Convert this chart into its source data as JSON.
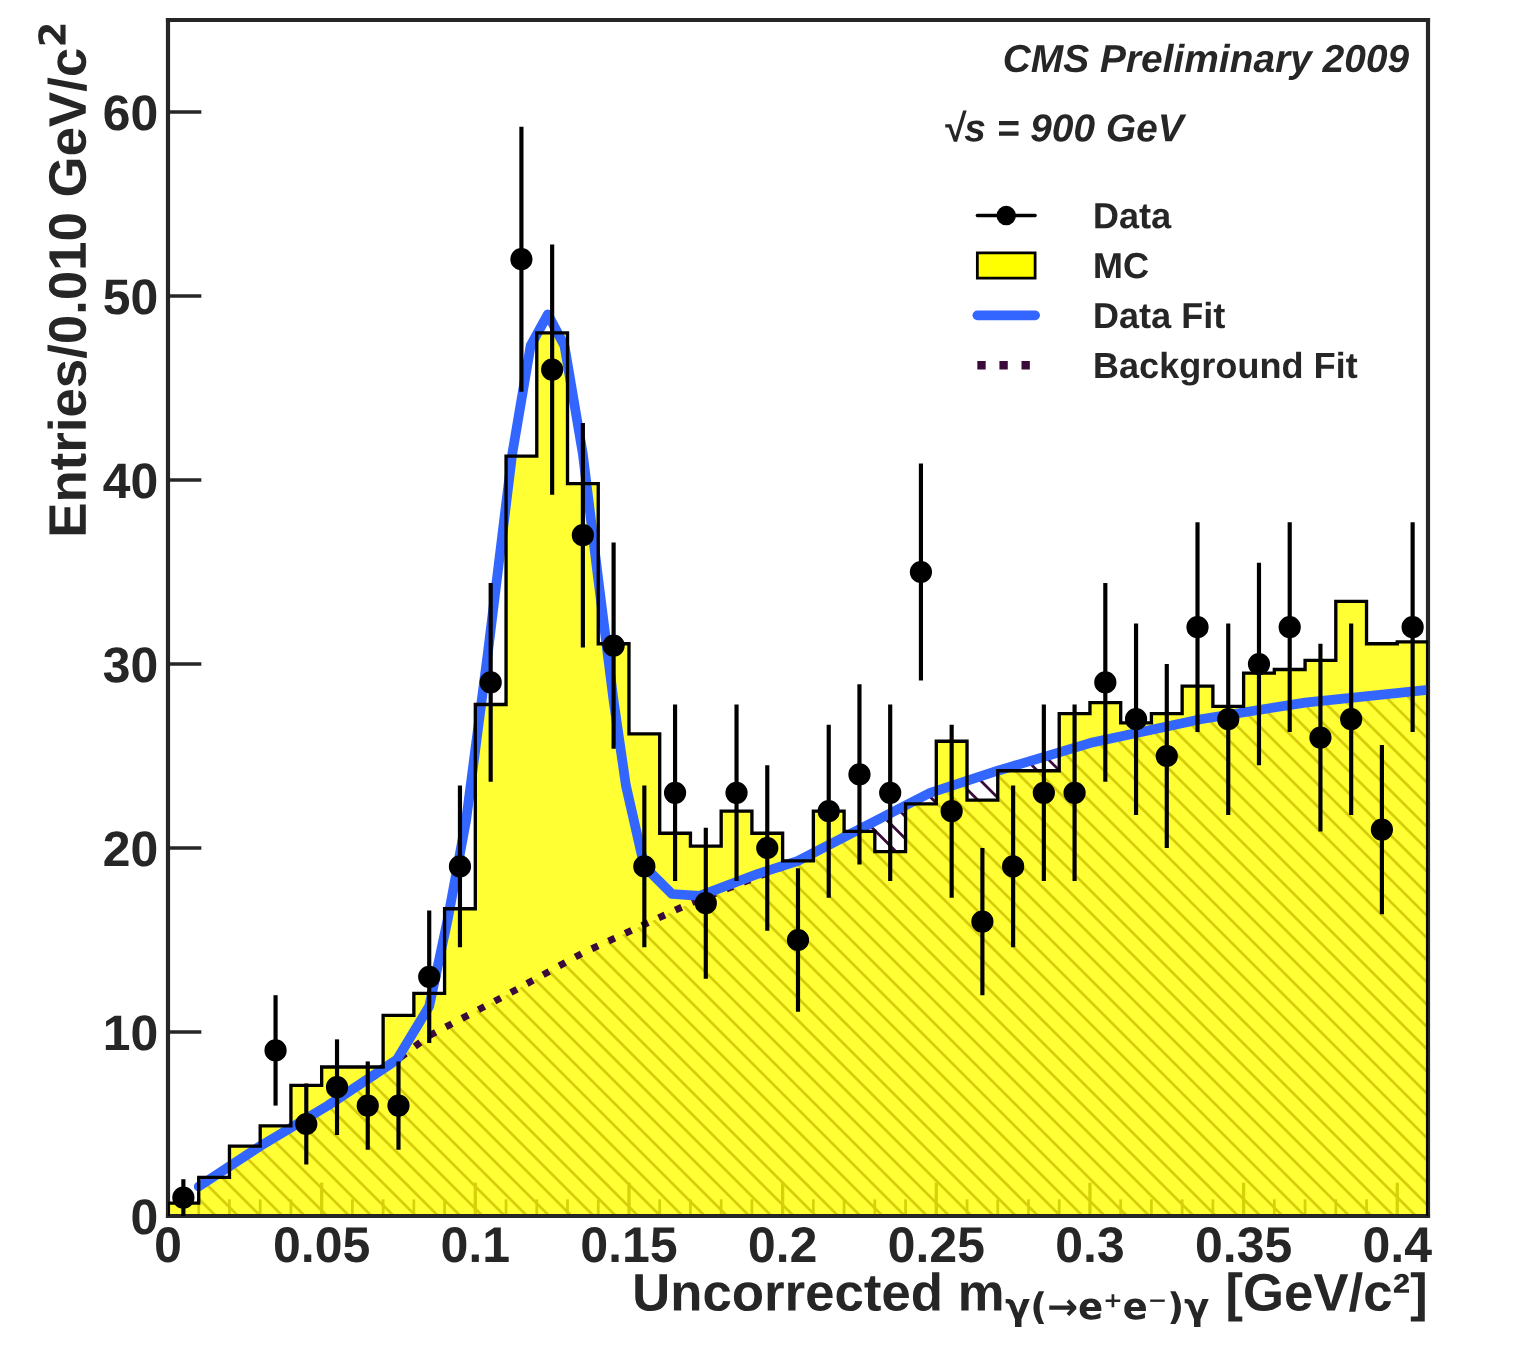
{
  "chart_data": {
    "type": "scatter",
    "xlabel": "Uncorrected m$_{γ(→e⁺e⁻)γ}$ [GeV/c²]",
    "ylabel": "Entries/0.010 GeV/c$^{2}$",
    "annotations": [
      "CMS Preliminary 2009",
      "√s = 900 GeV"
    ],
    "xlim": [
      0,
      0.41
    ],
    "xticks": [
      0,
      0.05,
      0.1,
      0.15,
      0.2,
      0.25,
      0.3,
      0.35,
      0.4
    ],
    "ylim": [
      0,
      65
    ],
    "yticks": [
      0,
      10,
      20,
      30,
      40,
      50,
      60
    ],
    "grid": false,
    "legend": "top right",
    "series": [
      {
        "name": "Data",
        "color": "#000000",
        "marker": "circle",
        "x": [
          0.005,
          0.015,
          0.025,
          0.035,
          0.045,
          0.055,
          0.065,
          0.075,
          0.085,
          0.095,
          0.105,
          0.115,
          0.125,
          0.135,
          0.145,
          0.155,
          0.165,
          0.175,
          0.185,
          0.195,
          0.205,
          0.215,
          0.225,
          0.235,
          0.245,
          0.255,
          0.265,
          0.275,
          0.285,
          0.295,
          0.305,
          0.315,
          0.325,
          0.335,
          0.345,
          0.355,
          0.365,
          0.375,
          0.385,
          0.395,
          0.405
        ],
        "values": [
          1,
          null,
          null,
          9,
          5,
          7,
          6,
          6,
          13,
          19,
          29,
          52,
          46,
          37,
          31,
          19,
          23,
          17,
          23,
          20,
          15,
          22,
          24,
          23,
          35,
          22,
          16,
          19,
          23,
          23,
          29,
          27,
          25,
          32,
          27,
          30,
          32,
          26,
          27,
          21,
          32
        ],
        "errors": [
          1,
          null,
          null,
          3,
          2.2,
          2.6,
          2.4,
          2.4,
          3.6,
          4.4,
          5.4,
          7.2,
          6.8,
          6.1,
          5.6,
          4.4,
          4.8,
          4.1,
          4.8,
          4.5,
          3.9,
          4.7,
          4.9,
          4.8,
          5.9,
          4.7,
          4,
          4.4,
          4.8,
          4.8,
          5.4,
          5.2,
          5,
          5.7,
          5.2,
          5.5,
          5.7,
          5.1,
          5.2,
          4.6,
          5.7
        ]
      },
      {
        "name": "MC",
        "type": "histogram",
        "color": "#ffff00",
        "bins": [
          0,
          0.01,
          0.02,
          0.03,
          0.04,
          0.05,
          0.06,
          0.07,
          0.08,
          0.09,
          0.1,
          0.11,
          0.12,
          0.13,
          0.14,
          0.15,
          0.16,
          0.17,
          0.18,
          0.19,
          0.2,
          0.21,
          0.22,
          0.23,
          0.24,
          0.25,
          0.26,
          0.27,
          0.28,
          0.29,
          0.3,
          0.31,
          0.32,
          0.33,
          0.34,
          0.35,
          0.36,
          0.37,
          0.38,
          0.39,
          0.4,
          0.41
        ],
        "values": [
          0.7,
          2.1,
          3.8,
          4.9,
          7.1,
          8.1,
          8.1,
          10.9,
          12.1,
          16.7,
          27.8,
          41.3,
          48.0,
          39.8,
          31.1,
          26.2,
          20.8,
          20.1,
          22.0,
          20.8,
          19.3,
          22.0,
          20.9,
          19.8,
          22.4,
          25.8,
          22.6,
          24.2,
          24.2,
          27.3,
          27.9,
          26.8,
          27.3,
          28.8,
          27.7,
          29.5,
          29.7,
          30.2,
          33.4,
          31.1,
          31.2
        ]
      },
      {
        "name": "Background Fit",
        "type": "area",
        "color": "#3a0a3a",
        "line_style": "dotted",
        "x": [
          0.01,
          0.03,
          0.05,
          0.07,
          0.085,
          0.11,
          0.135,
          0.17,
          0.205,
          0.248,
          0.27,
          0.3,
          0.336,
          0.37,
          0.41
        ],
        "values": [
          1.6,
          3.8,
          5.8,
          7.9,
          9.8,
          12.0,
          14.3,
          17.0,
          19.3,
          23.0,
          24.2,
          25.7,
          27.0,
          27.9,
          28.6
        ]
      },
      {
        "name": "Data Fit",
        "type": "line",
        "color": "#3366ff",
        "line_style": "solid",
        "x": [
          0.01,
          0.03,
          0.052,
          0.0745,
          0.085,
          0.091,
          0.097,
          0.104,
          0.112,
          0.118,
          0.1236,
          0.129,
          0.135,
          0.14,
          0.145,
          0.149,
          0.155,
          0.164,
          0.173,
          0.192,
          0.205,
          0.248,
          0.27,
          0.3,
          0.336,
          0.37,
          0.41
        ],
        "values": [
          1.6,
          3.8,
          6.0,
          8.5,
          11.4,
          16.1,
          21.5,
          30.5,
          41.4,
          47.3,
          49.0,
          47.3,
          41.4,
          34.6,
          28.0,
          23.4,
          19.0,
          17.5,
          17.4,
          18.6,
          19.3,
          23.0,
          24.2,
          25.7,
          27.0,
          27.9,
          28.6
        ]
      }
    ]
  }
}
